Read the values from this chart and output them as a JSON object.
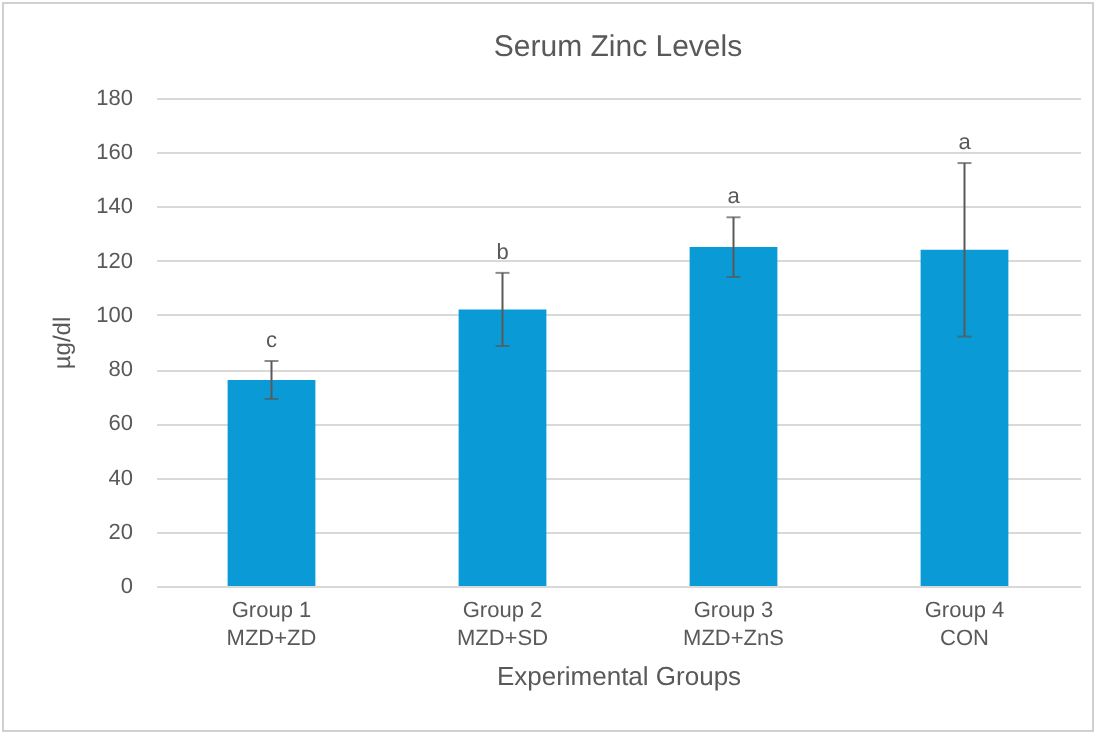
{
  "chart_data": {
    "type": "bar",
    "title": "Serum Zinc Levels",
    "xlabel": "Experimental Groups",
    "ylabel": "µg/dl",
    "categories": [
      "Group 1\nMZD+ZD",
      "Group 2\nMZD+SD",
      "Group 3\nMZD+ZnS",
      "Group 4\nCON"
    ],
    "values": [
      76,
      102,
      125,
      124
    ],
    "errors": [
      7,
      13.5,
      11,
      32
    ],
    "color": "#0a9bd7",
    "ylim": [
      0,
      180
    ],
    "yticks": [
      0,
      20,
      40,
      60,
      80,
      100,
      120,
      140,
      160,
      180
    ],
    "grid": "y",
    "annotations": [
      {
        "text": "c",
        "x": "Group 1\nMZD+ZD",
        "y": 83
      },
      {
        "text": "b",
        "x": "Group 2\nMZD+SD",
        "y": 115.5
      },
      {
        "text": "a",
        "x": "Group 3\nMZD+ZnS",
        "y": 136
      },
      {
        "text": "a",
        "x": "Group 4\nCON",
        "y": 156
      }
    ]
  }
}
